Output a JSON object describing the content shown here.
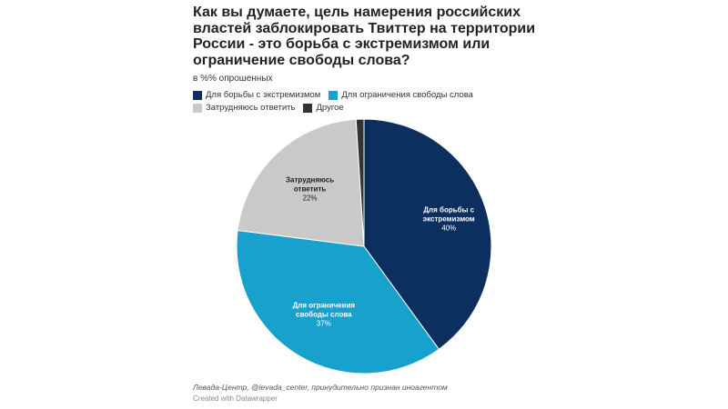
{
  "chart_data": {
    "type": "pie",
    "title": "Как вы думаете, цель намерения российских властей заблокировать Твиттер на территории России - это борьба с экстремизмом или ограничение свободы слова?",
    "subtitle": "в %% опрошенных",
    "legend_placement": "top",
    "slices": [
      {
        "name": "Для борьбы с экстремизмом",
        "label_lines": [
          "Для борьбы с",
          "экстремизмом"
        ],
        "value": 40,
        "value_label": "40%",
        "color": "#0b2f5e",
        "text_color": "#ffffff"
      },
      {
        "name": "Для ограничения свободы слова",
        "label_lines": [
          "Для ограничения",
          "свободы слова"
        ],
        "value": 37,
        "value_label": "37%",
        "color": "#18a1cd",
        "text_color": "#ffffff"
      },
      {
        "name": "Затрудняюсь ответить",
        "label_lines": [
          "Затрудняюсь",
          "ответить"
        ],
        "value": 22,
        "value_label": "22%",
        "color": "#c9c9c9",
        "text_color": "#222222"
      },
      {
        "name": "Другое",
        "label_lines": [],
        "value": 1,
        "value_label": "",
        "color": "#333333",
        "text_color": "#ffffff"
      }
    ]
  },
  "footer": {
    "source": "Левада-Центр, @levada_center, принудительно признан иноагентом",
    "credit": "Created with Datawrapper"
  }
}
